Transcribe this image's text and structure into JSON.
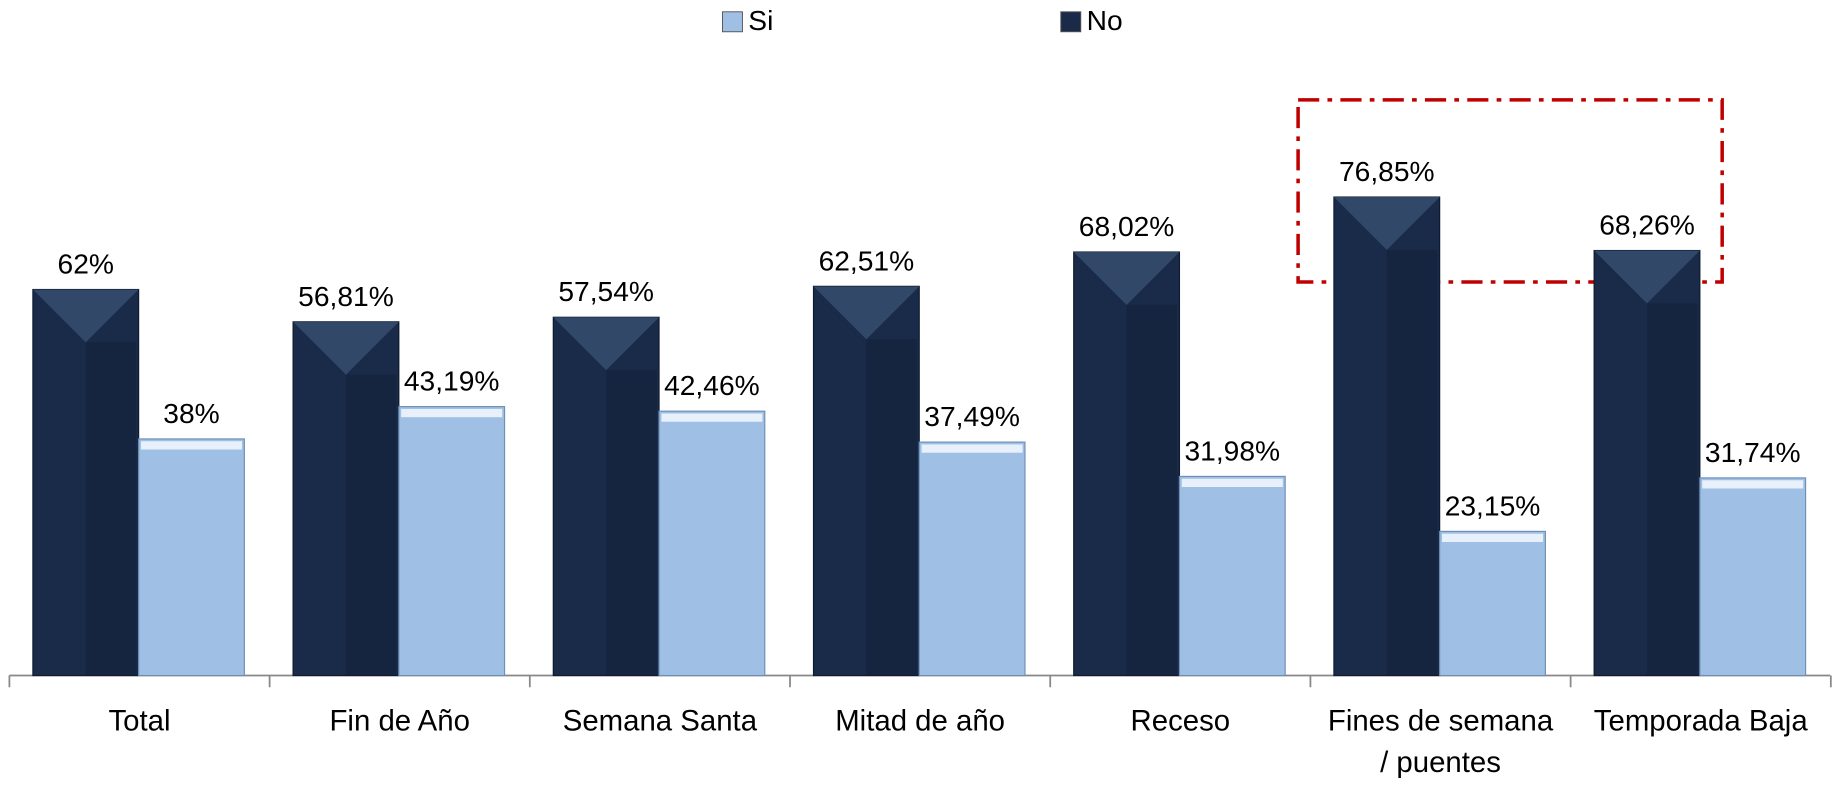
{
  "chart_data": {
    "type": "bar",
    "categories": [
      "Total",
      "Fin de Año",
      "Semana Santa",
      "Mitad de año",
      "Receso",
      "Fines de semana / puentes",
      "Temporada Baja"
    ],
    "series": [
      {
        "name": "No",
        "color": "#1a2b49",
        "values": [
          62,
          56.81,
          57.54,
          62.51,
          68.02,
          76.85,
          68.26
        ],
        "value_labels": [
          "62%",
          "56,81%",
          "57,54%",
          "62,51%",
          "68,02%",
          "76,85%",
          "68,26%"
        ]
      },
      {
        "name": "Si",
        "color": "#9fc0e4",
        "values": [
          38,
          43.19,
          42.46,
          37.49,
          31.98,
          23.15,
          31.74
        ],
        "value_labels": [
          "38%",
          "43,19%",
          "42,46%",
          "37,49%",
          "31,98%",
          "23,15%",
          "31,74%"
        ]
      }
    ],
    "legend_order": [
      "Si",
      "No"
    ],
    "ylim": [
      0,
      100
    ]
  }
}
